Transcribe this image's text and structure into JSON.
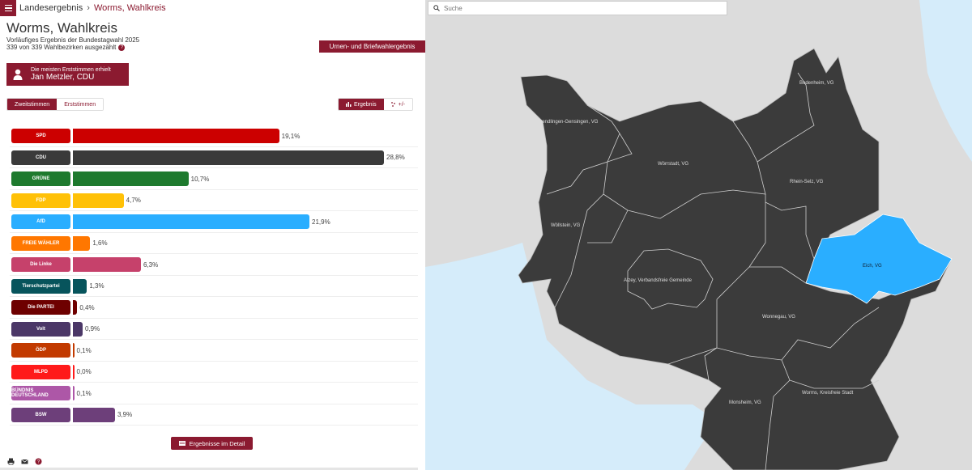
{
  "breadcrumb": {
    "root": "Landesergebnis",
    "separator": "›",
    "current": "Worms, Wahlkreis"
  },
  "header": {
    "title": "Worms, Wahlkreis",
    "subtitle": "Vorläufiges Ergebnis der Bundestagwahl 2025",
    "counted": "339 von 339 Wahlbezirken ausgezählt",
    "help": "?",
    "urnen_label": "Urnen- und Briefwahlergebnis"
  },
  "winner": {
    "line1": "Die meisten Erststimmen erhielt",
    "line2": "Jan Metzler, CDU"
  },
  "vote_toggle": {
    "zweit": "Zweitstimmen",
    "erst": "Erststimmen"
  },
  "view_toggle": {
    "ergebnis": "Ergebnis",
    "diff": "+/-"
  },
  "chart_data": {
    "type": "bar",
    "categories": [
      "SPD",
      "CDU",
      "GRÜNE",
      "FDP",
      "AfD",
      "FREIE WÄHLER",
      "Die Linke",
      "Tierschutzpartei",
      "Die PARTEI",
      "Volt",
      "ÖDP",
      "MLPD",
      "BÜNDNIS DEUTSCHLAND",
      "BSW"
    ],
    "values": [
      19.1,
      28.8,
      10.7,
      4.7,
      21.9,
      1.6,
      6.3,
      1.3,
      0.4,
      0.9,
      0.1,
      0.0,
      0.1,
      3.9
    ],
    "labels": [
      "19,1%",
      "28,8%",
      "10,7%",
      "4,7%",
      "21,9%",
      "1,6%",
      "6,3%",
      "1,3%",
      "0,4%",
      "0,9%",
      "0,1%",
      "0,0%",
      "0,1%",
      "3,9%"
    ],
    "colors": [
      "#cc0000",
      "#3a3a3a",
      "#1e7a2e",
      "#ffc107",
      "#2aaeff",
      "#ff7700",
      "#c6416b",
      "#07545c",
      "#6e0000",
      "#4b3767",
      "#c23a00",
      "#ff1a1a",
      "#ad57a7",
      "#6d3f7a"
    ]
  },
  "detail_button": "Ergebnisse im Detail",
  "search": {
    "placeholder": "Suche"
  },
  "map": {
    "regions": [
      "Sprendlingen-Gensingen, VG",
      "Bodenheim, VG",
      "Wörrstadt, VG",
      "Rhein-Selz, VG",
      "Wöllstein, VG",
      "Alzey, Verbandsfreie Gemeinde",
      "Eich, VG",
      "Wonnegau, VG",
      "Monsheim, VG",
      "Worms, Kreisfreie Stadt"
    ]
  }
}
